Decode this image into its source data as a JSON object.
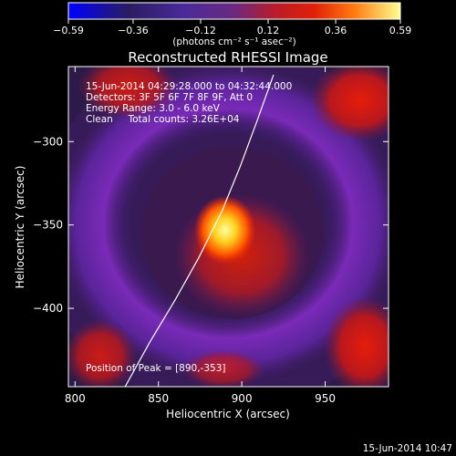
{
  "colorbar": {
    "tick_values": [
      -0.59,
      -0.36,
      -0.12,
      0.12,
      0.36,
      0.59
    ],
    "tick_labels": [
      "−0.59",
      "−0.36",
      "−0.12",
      "0.12",
      "0.36",
      "0.59"
    ],
    "units_label": "(photons cm⁻² s⁻¹ asec⁻²)",
    "colors": [
      "#0000ff",
      "#2a1c60",
      "#4a2a9a",
      "#8a1f4a",
      "#d21808",
      "#ff6a10",
      "#ffff80"
    ]
  },
  "chart_data": {
    "type": "heatmap",
    "title": "Reconstructed RHESSI Image",
    "xlabel": "Heliocentric X (arcsec)",
    "ylabel": "Heliocentric Y (arcsec)",
    "xlim": [
      796,
      988
    ],
    "ylim": [
      -447,
      -255
    ],
    "xticks": [
      800,
      850,
      900,
      950
    ],
    "xtick_labels": [
      "800",
      "850",
      "900",
      "950"
    ],
    "yticks": [
      -300,
      -350,
      -400
    ],
    "ytick_labels": [
      "−300",
      "−350",
      "−400"
    ],
    "peak": {
      "x": 890,
      "y": -353,
      "value": 0.59
    },
    "annotations": [
      "15-Jun-2014 04:29:28.000 to 04:32:44.000",
      "Detectors: 3F 5F 6F 7F 8F 9F, Att 0",
      "Energy Range: 3.0 - 6.0 keV",
      "Clean     Total counts: 3.26E+04"
    ],
    "peak_label": "Position of Peak = [890,-353]",
    "limb_curve": [
      {
        "x": 830,
        "y": -447
      },
      {
        "x": 845,
        "y": -420
      },
      {
        "x": 860,
        "y": -395
      },
      {
        "x": 874,
        "y": -370
      },
      {
        "x": 888,
        "y": -342
      },
      {
        "x": 899,
        "y": -315
      },
      {
        "x": 909,
        "y": -288
      },
      {
        "x": 919,
        "y": -260
      }
    ],
    "grid": false
  },
  "footer": {
    "timestamp": "15-Jun-2014 10:47"
  }
}
